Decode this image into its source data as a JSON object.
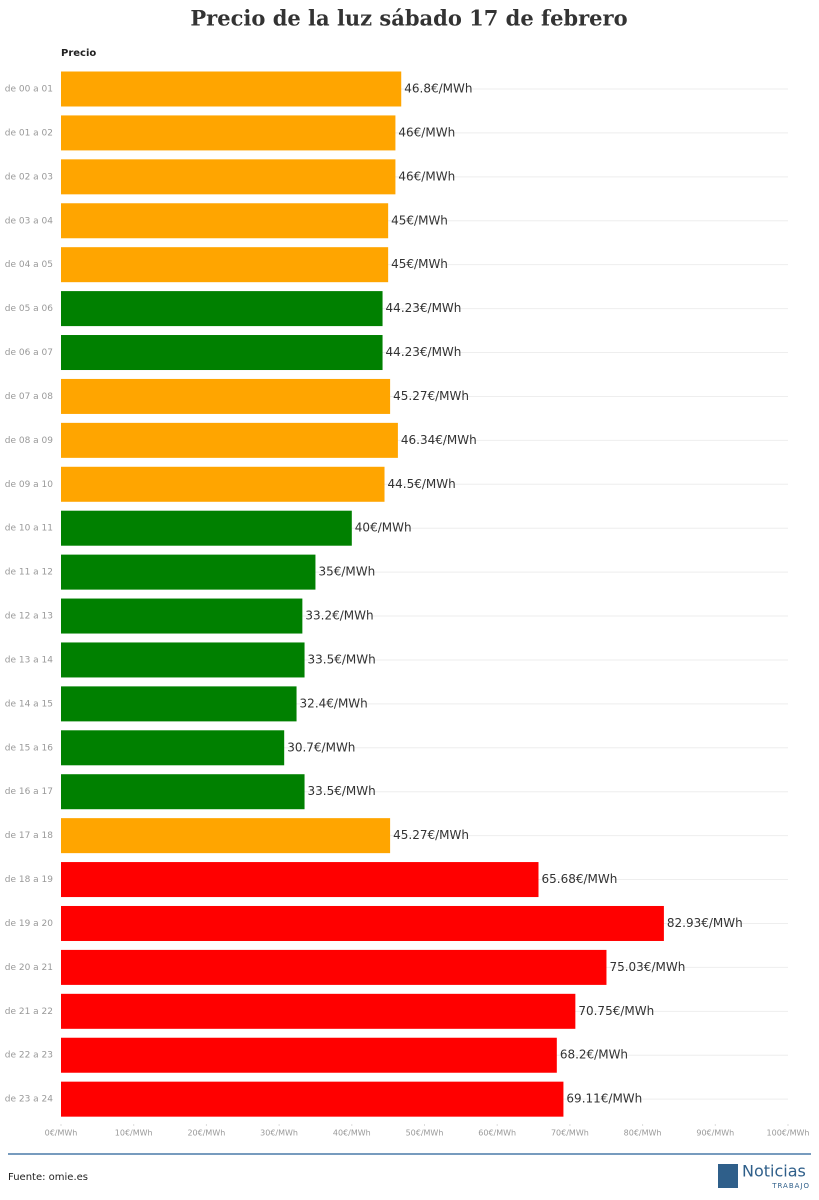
{
  "chart_data": {
    "type": "hbar",
    "title": "Precio de la luz sábado 17 de febrero",
    "column_label": "Precio",
    "categories": [
      "de 00 a 01",
      "de 01 a 02",
      "de 02 a 03",
      "de 03 a 04",
      "de 04 a 05",
      "de 05 a 06",
      "de 06 a 07",
      "de 07 a 08",
      "de 08 a 09",
      "de 09 a 10",
      "de 10 a 11",
      "de 11 a 12",
      "de 12 a 13",
      "de 13 a 14",
      "de 14 a 15",
      "de 15 a 16",
      "de 16 a 17",
      "de 17 a 18",
      "de 18 a 19",
      "de 19 a 20",
      "de 20 a 21",
      "de 21 a 22",
      "de 22 a 23",
      "de 23 a 24"
    ],
    "values": [
      46.8,
      46,
      46,
      45,
      45,
      44.23,
      44.23,
      45.27,
      46.34,
      44.5,
      40,
      35,
      33.2,
      33.5,
      32.4,
      30.7,
      33.5,
      45.27,
      65.68,
      82.93,
      75.03,
      70.75,
      68.2,
      69.11
    ],
    "value_labels": [
      "46.8€/MWh",
      "46€/MWh",
      "46€/MWh",
      "45€/MWh",
      "45€/MWh",
      "44.23€/MWh",
      "44.23€/MWh",
      "45.27€/MWh",
      "46.34€/MWh",
      "44.5€/MWh",
      "40€/MWh",
      "35€/MWh",
      "33.2€/MWh",
      "33.5€/MWh",
      "32.4€/MWh",
      "30.7€/MWh",
      "33.5€/MWh",
      "45.27€/MWh",
      "65.68€/MWh",
      "82.93€/MWh",
      "75.03€/MWh",
      "70.75€/MWh",
      "68.2€/MWh",
      "69.11€/MWh"
    ],
    "colors": [
      "#ffa500",
      "#ffa500",
      "#ffa500",
      "#ffa500",
      "#ffa500",
      "#008000",
      "#008000",
      "#ffa500",
      "#ffa500",
      "#ffa500",
      "#008000",
      "#008000",
      "#008000",
      "#008000",
      "#008000",
      "#008000",
      "#008000",
      "#ffa500",
      "#ff0000",
      "#ff0000",
      "#ff0000",
      "#ff0000",
      "#ff0000",
      "#ff0000"
    ],
    "xlim": [
      0,
      100
    ],
    "xticks": [
      {
        "value": 0,
        "label": "0€/MWh"
      },
      {
        "value": 10,
        "label": "10€/MWh"
      },
      {
        "value": 20,
        "label": "20€/MWh"
      },
      {
        "value": 30,
        "label": "30€/MWh"
      },
      {
        "value": 40,
        "label": "40€/MWh"
      },
      {
        "value": 50,
        "label": "50€/MWh"
      },
      {
        "value": 60,
        "label": "60€/MWh"
      },
      {
        "value": 70,
        "label": "70€/MWh"
      },
      {
        "value": 80,
        "label": "80€/MWh"
      },
      {
        "value": 90,
        "label": "90€/MWh"
      },
      {
        "value": 100,
        "label": "100€/MWh"
      }
    ]
  },
  "footer": {
    "source": "Fuente: omie.es",
    "logo_main": "Noticias",
    "logo_sub": "TRABAJO"
  }
}
